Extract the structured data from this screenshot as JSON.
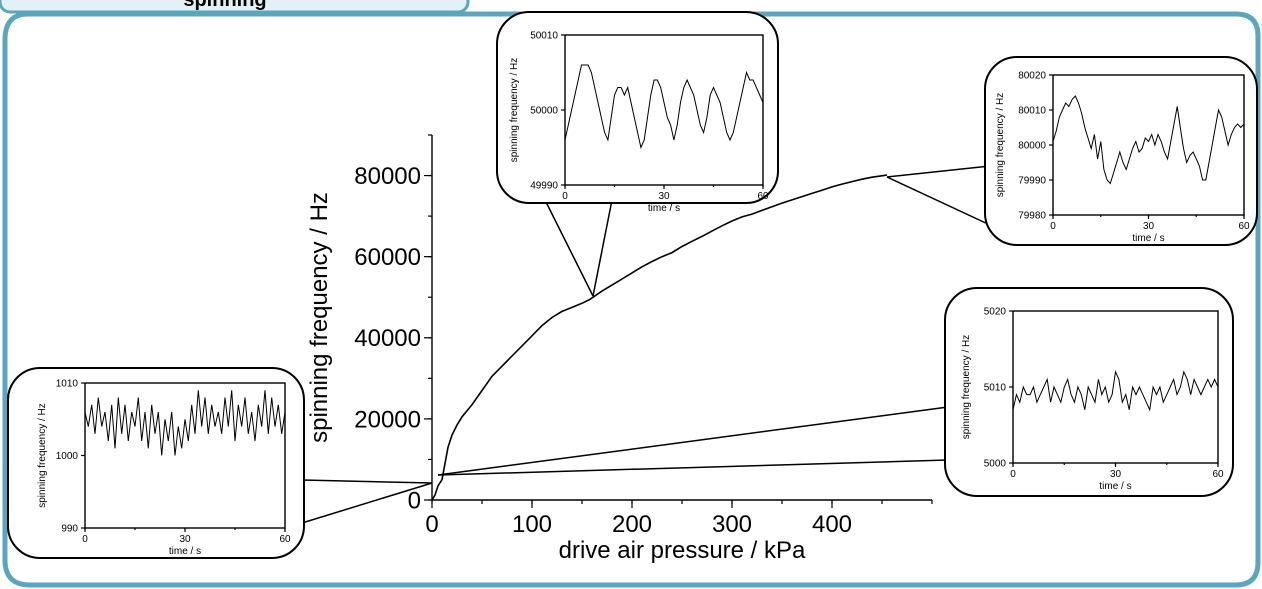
{
  "header": {
    "title": "spinning"
  },
  "chart_data": {
    "main": {
      "type": "line",
      "xlabel": "drive air pressure / kPa",
      "ylabel": "spinning frequency / Hz",
      "xlim": [
        0,
        500
      ],
      "ylim": [
        0,
        90000
      ],
      "xticks": [
        0,
        100,
        200,
        300,
        400
      ],
      "yticks": [
        0,
        20000,
        40000,
        60000,
        80000
      ],
      "x": [
        0,
        3,
        6,
        10,
        13,
        16,
        20,
        25,
        30,
        40,
        50,
        60,
        70,
        80,
        90,
        100,
        110,
        120,
        130,
        140,
        150,
        158,
        170,
        180,
        190,
        200,
        210,
        220,
        230,
        240,
        250,
        260,
        270,
        280,
        290,
        300,
        310,
        320,
        330,
        340,
        350,
        360,
        370,
        380,
        390,
        400,
        410,
        420,
        430,
        440,
        455
      ],
      "y": [
        0,
        1200,
        3500,
        5000,
        9000,
        13000,
        16000,
        18500,
        20500,
        23500,
        27000,
        30500,
        33000,
        35500,
        38000,
        40500,
        43000,
        45000,
        46500,
        47500,
        48500,
        49500,
        51500,
        53000,
        54500,
        56000,
        57500,
        58800,
        60000,
        61000,
        62500,
        63800,
        65000,
        66300,
        67600,
        68800,
        69800,
        70500,
        71400,
        72300,
        73200,
        74000,
        74800,
        75600,
        76400,
        77200,
        77900,
        78500,
        79100,
        79600,
        80100
      ]
    },
    "insets": [
      {
        "type": "line",
        "xlabel": "time / s",
        "ylabel": "spinning frequency / Hz",
        "xlim": [
          0,
          60
        ],
        "ylim": [
          49990,
          50010
        ],
        "xticks": [
          0,
          30,
          60
        ],
        "yticks": [
          49990,
          50000,
          50010
        ],
        "x": [
          0,
          1,
          2,
          3,
          4,
          5,
          6,
          7,
          8,
          9,
          10,
          11,
          12,
          13,
          14,
          15,
          16,
          17,
          18,
          19,
          20,
          21,
          22,
          23,
          24,
          25,
          26,
          27,
          28,
          29,
          30,
          31,
          32,
          33,
          34,
          35,
          36,
          37,
          38,
          39,
          40,
          41,
          42,
          43,
          44,
          45,
          46,
          47,
          48,
          49,
          50,
          51,
          52,
          53,
          54,
          55,
          56,
          57,
          58,
          59,
          60
        ],
        "y": [
          49996,
          49998,
          50000,
          50002,
          50004,
          50006,
          50006,
          50006,
          50005,
          50003,
          50001,
          49999,
          49997,
          49996,
          49999,
          50002,
          50003,
          50003,
          50002,
          50003,
          50001,
          49999,
          49997,
          49995,
          49996,
          49999,
          50002,
          50004,
          50004,
          50003,
          50001,
          49999,
          49998,
          49996,
          49998,
          50001,
          50003,
          50004,
          50003,
          50002,
          50000,
          49998,
          49997,
          49999,
          50002,
          50003,
          50002,
          50001,
          49999,
          49997,
          49996,
          49997,
          49999,
          50001,
          50003,
          50005,
          50004,
          50004,
          50003,
          50002,
          50001
        ]
      },
      {
        "type": "line",
        "xlabel": "time / s",
        "ylabel": "spinning frequency / Hz",
        "xlim": [
          0,
          60
        ],
        "ylim": [
          79980,
          80020
        ],
        "xticks": [
          0,
          30,
          60
        ],
        "yticks": [
          79980,
          79990,
          80000,
          80010,
          80020
        ],
        "x": [
          0,
          1,
          2,
          3,
          4,
          5,
          6,
          7,
          8,
          9,
          10,
          11,
          12,
          13,
          14,
          15,
          16,
          17,
          18,
          19,
          20,
          21,
          22,
          23,
          24,
          25,
          26,
          27,
          28,
          29,
          30,
          31,
          32,
          33,
          34,
          35,
          36,
          37,
          38,
          39,
          40,
          41,
          42,
          43,
          44,
          45,
          46,
          47,
          48,
          49,
          50,
          51,
          52,
          53,
          54,
          55,
          56,
          57,
          58,
          59,
          60
        ],
        "y": [
          80001,
          80004,
          80008,
          80010,
          80012,
          80011,
          80013,
          80014,
          80012,
          80009,
          80005,
          80002,
          79999,
          80003,
          79996,
          80001,
          79993,
          79990,
          79989,
          79992,
          79995,
          79998,
          79995,
          79993,
          79996,
          79999,
          80001,
          79998,
          79999,
          80002,
          80001,
          80003,
          80000,
          80003,
          80001,
          79998,
          79996,
          80001,
          80006,
          80011,
          80005,
          79999,
          79995,
          79997,
          79998,
          79996,
          79994,
          79990,
          79990,
          79995,
          80000,
          80005,
          80010,
          80008,
          80004,
          80000,
          80003,
          80005,
          80006,
          80005,
          80006
        ]
      },
      {
        "type": "line",
        "xlabel": "time / s",
        "ylabel": "spinning frequency / Hz",
        "xlim": [
          0,
          60
        ],
        "ylim": [
          5000,
          5020
        ],
        "xticks": [
          0,
          30,
          60
        ],
        "yticks": [
          5000,
          5010,
          5020
        ],
        "x": [
          0,
          1,
          2,
          3,
          4,
          5,
          6,
          7,
          8,
          9,
          10,
          11,
          12,
          13,
          14,
          15,
          16,
          17,
          18,
          19,
          20,
          21,
          22,
          23,
          24,
          25,
          26,
          27,
          28,
          29,
          30,
          31,
          32,
          33,
          34,
          35,
          36,
          37,
          38,
          39,
          40,
          41,
          42,
          43,
          44,
          45,
          46,
          47,
          48,
          49,
          50,
          51,
          52,
          53,
          54,
          55,
          56,
          57,
          58,
          59,
          60
        ],
        "y": [
          5007,
          5009,
          5008,
          5010,
          5009,
          5009,
          5010,
          5008,
          5009,
          5010,
          5011,
          5008,
          5010,
          5009,
          5008,
          5010,
          5011,
          5009,
          5008,
          5010,
          5009,
          5007,
          5010,
          5009,
          5008,
          5011,
          5009,
          5010,
          5008,
          5009,
          5012,
          5011,
          5008,
          5009,
          5007,
          5010,
          5009,
          5010,
          5009,
          5008,
          5007,
          5010,
          5009,
          5010,
          5008,
          5009,
          5010,
          5011,
          5009,
          5010,
          5012,
          5011,
          5009,
          5011,
          5010,
          5009,
          5010,
          5011,
          5010,
          5011,
          5010
        ]
      },
      {
        "type": "line",
        "xlabel": "time / s",
        "ylabel": "spinning frequency / Hz",
        "xlim": [
          0,
          60
        ],
        "ylim": [
          990,
          1010
        ],
        "xticks": [
          0,
          30,
          60
        ],
        "yticks": [
          990,
          1000,
          1010
        ],
        "x": [
          0,
          1,
          2,
          3,
          4,
          5,
          6,
          7,
          8,
          9,
          10,
          11,
          12,
          13,
          14,
          15,
          16,
          17,
          18,
          19,
          20,
          21,
          22,
          23,
          24,
          25,
          26,
          27,
          28,
          29,
          30,
          31,
          32,
          33,
          34,
          35,
          36,
          37,
          38,
          39,
          40,
          41,
          42,
          43,
          44,
          45,
          46,
          47,
          48,
          49,
          50,
          51,
          52,
          53,
          54,
          55,
          56,
          57,
          58,
          59,
          60
        ],
        "y": [
          1006,
          1004,
          1007,
          1003,
          1008,
          1004,
          1006,
          1002,
          1007,
          1001,
          1008,
          1003,
          1007,
          1002,
          1006,
          1004,
          1008,
          1002,
          1006,
          1001,
          1007,
          1003,
          1006,
          1000,
          1005,
          1002,
          1006,
          1000,
          1004,
          1001,
          1005,
          1002,
          1007,
          1003,
          1009,
          1004,
          1008,
          1003,
          1007,
          1004,
          1006,
          1003,
          1008,
          1004,
          1009,
          1002,
          1007,
          1004,
          1008,
          1003,
          1006,
          1002,
          1007,
          1004,
          1009,
          1003,
          1008,
          1004,
          1007,
          1003,
          1006
        ]
      }
    ]
  }
}
